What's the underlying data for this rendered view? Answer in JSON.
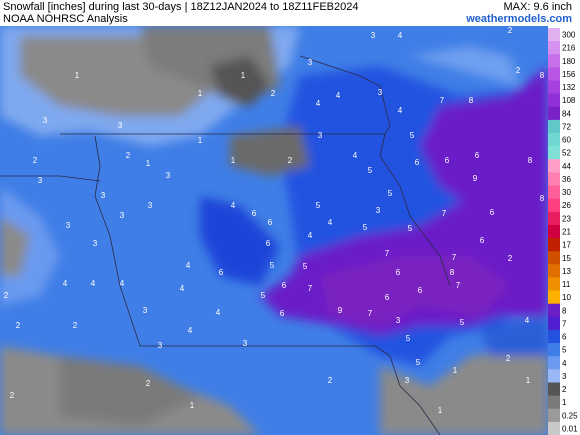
{
  "header": {
    "title": "Snowfall [inches] during last 30-days | 18Z12JAN2024 to 18Z11FEB2024",
    "subtitle": "NOAA NOHRSC Analysis",
    "max_label": "MAX: 9.6 inch",
    "source": "weathermodels.com"
  },
  "colorbar": {
    "labels": [
      "300",
      "216",
      "180",
      "156",
      "132",
      "108",
      "84",
      "72",
      "60",
      "52",
      "44",
      "36",
      "30",
      "26",
      "23",
      "21",
      "17",
      "15",
      "13",
      "11",
      "10",
      "8",
      "7",
      "6",
      "5",
      "4",
      "3",
      "2",
      "1",
      "0.25",
      "0.01"
    ]
  },
  "map_labels": [
    "2",
    "4",
    "3",
    "3",
    "1",
    "1",
    "2",
    "8",
    "2",
    "4",
    "4",
    "3",
    "7",
    "8",
    "4",
    "3",
    "3",
    "1",
    "3",
    "5",
    "1",
    "2",
    "4",
    "6",
    "6",
    "6",
    "8",
    "3",
    "3",
    "5",
    "9",
    "5",
    "8",
    "3",
    "3",
    "3",
    "4",
    "6",
    "5",
    "3",
    "5",
    "7",
    "6",
    "3",
    "6",
    "4",
    "5",
    "6",
    "6",
    "4",
    "3",
    "7",
    "4",
    "5",
    "5",
    "7",
    "6",
    "6",
    "8",
    "4",
    "4",
    "6",
    "7",
    "6",
    "7",
    "4",
    "5",
    "9",
    "7",
    "6",
    "6",
    "2",
    "2",
    "2",
    "3",
    "4",
    "5",
    "3",
    "4",
    "3",
    "5",
    "3",
    "5",
    "2",
    "2",
    "1",
    "2",
    "2",
    "1",
    "1",
    "1",
    "3",
    "2",
    "1",
    "2",
    "1",
    "4",
    "2",
    "4"
  ]
}
